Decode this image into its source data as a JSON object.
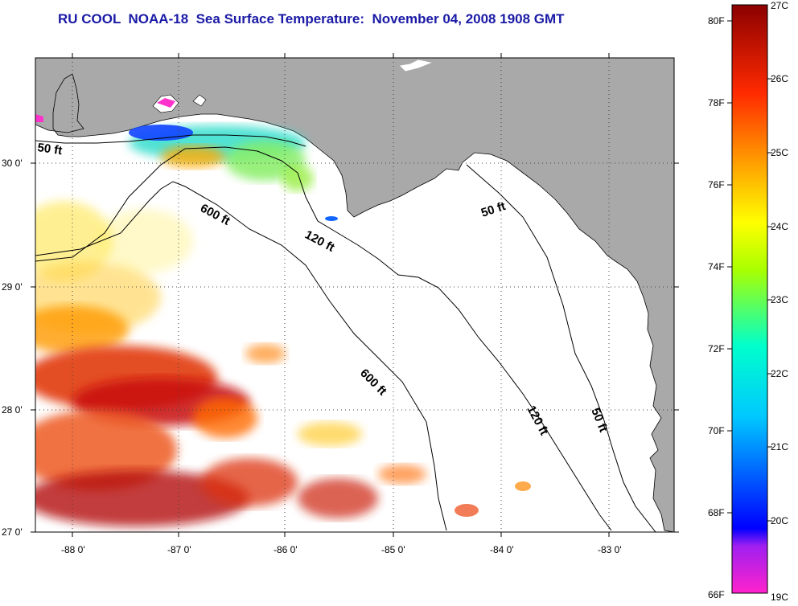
{
  "title": "RU COOL  NOAA-18  Sea Surface Temperature:  November 04, 2008 1908 GMT",
  "longitude_ticks": [
    "-88 0'",
    "-87 0'",
    "-86 0'",
    "-85 0'",
    "-84 0'",
    "-83 0'"
  ],
  "latitude_ticks": [
    "30 0'",
    "29 0'",
    "28 0'",
    "27 0'"
  ],
  "contour_labels": [
    "50 ft",
    "600 ft",
    "120 ft",
    "50 ft",
    "600 ft",
    "120 ft",
    "50 ft"
  ],
  "colorbar": {
    "fahrenheit": [
      "80F",
      "78F",
      "76F",
      "74F",
      "72F",
      "70F",
      "68F",
      "66F"
    ],
    "celsius": [
      "27C",
      "26C",
      "25C",
      "24C",
      "23C",
      "22C",
      "21C",
      "20C",
      "19C"
    ],
    "range_c": [
      19,
      27
    ],
    "colors": [
      "#ff22cc",
      "#8a2be2",
      "#0000ff",
      "#00ffff",
      "#ffff00",
      "#ff8c00",
      "#ff0000",
      "#8b0000"
    ]
  },
  "colors": {
    "land": "#a9a9a9",
    "ocean": "#ffffff",
    "title": "#1a1aa6"
  }
}
